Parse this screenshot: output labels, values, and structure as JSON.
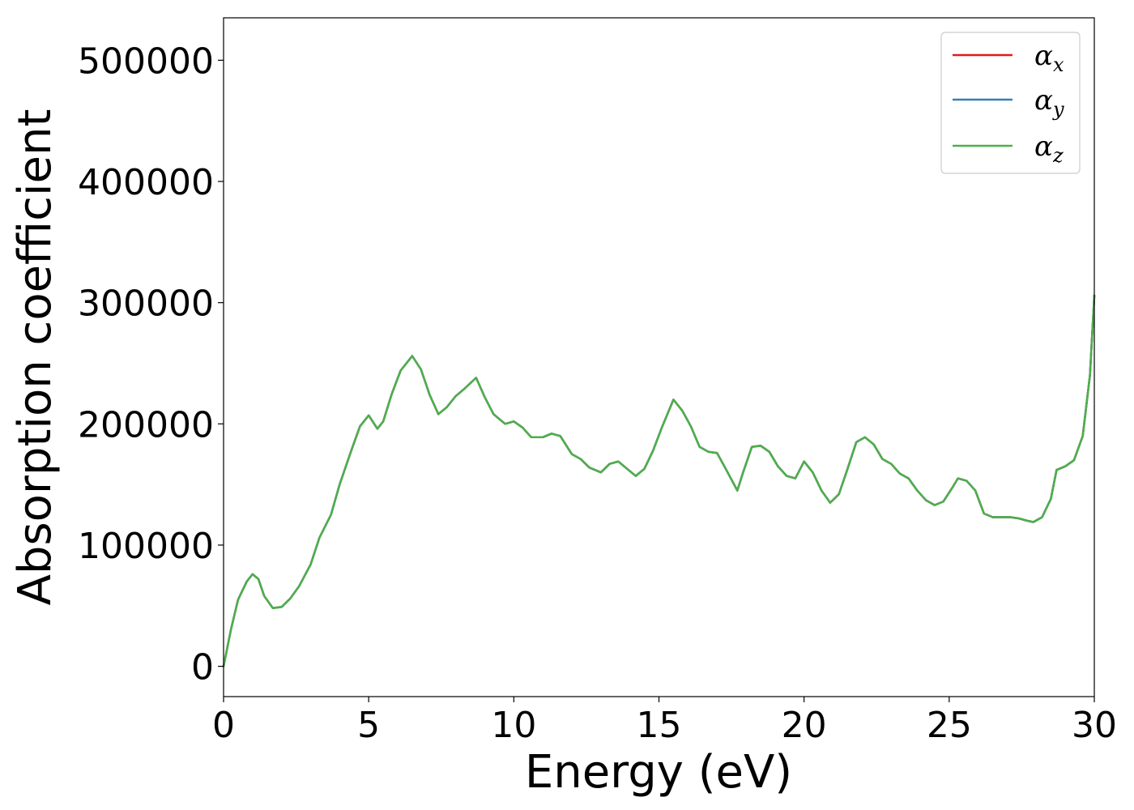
{
  "chart_data": {
    "type": "line",
    "xlabel": "Energy (eV)",
    "ylabel": "Absorption coefficient",
    "xlim": [
      0,
      30
    ],
    "ylim": [
      -25000,
      535000
    ],
    "xticks": [
      0,
      5,
      10,
      15,
      20,
      25,
      30
    ],
    "xtick_labels": [
      "0",
      "5",
      "10",
      "15",
      "20",
      "25",
      "30"
    ],
    "yticks": [
      0,
      100000,
      200000,
      300000,
      400000,
      500000
    ],
    "ytick_labels": [
      "0",
      "100000",
      "200000",
      "300000",
      "400000",
      "500000"
    ],
    "grid": false,
    "legend_position": "top-right",
    "x": [
      0.0,
      0.25,
      0.5,
      0.8,
      1.0,
      1.2,
      1.4,
      1.7,
      2.0,
      2.3,
      2.6,
      3.0,
      3.3,
      3.7,
      4.0,
      4.4,
      4.7,
      5.0,
      5.3,
      5.5,
      5.8,
      6.1,
      6.5,
      6.8,
      7.1,
      7.4,
      7.7,
      8.0,
      8.3,
      8.7,
      9.0,
      9.3,
      9.7,
      10.0,
      10.3,
      10.6,
      11.0,
      11.3,
      11.6,
      12.0,
      12.3,
      12.6,
      13.0,
      13.3,
      13.6,
      13.9,
      14.2,
      14.5,
      14.8,
      15.1,
      15.5,
      15.8,
      16.1,
      16.4,
      16.7,
      17.0,
      17.3,
      17.7,
      17.9,
      18.2,
      18.5,
      18.8,
      19.1,
      19.4,
      19.7,
      20.0,
      20.3,
      20.6,
      20.9,
      21.2,
      21.5,
      21.8,
      22.1,
      22.4,
      22.7,
      23.0,
      23.3,
      23.6,
      23.9,
      24.2,
      24.5,
      24.8,
      25.1,
      25.3,
      25.6,
      25.9,
      26.2,
      26.5,
      26.8,
      27.1,
      27.4,
      27.7,
      27.9,
      28.2,
      28.5,
      28.7,
      29.0,
      29.3,
      29.6,
      29.85,
      30.0
    ],
    "series": [
      {
        "name": "αx",
        "color": "#e41a1c",
        "y": [
          0,
          30000,
          55000,
          70000,
          76000,
          72000,
          58000,
          48000,
          49000,
          56000,
          66000,
          84000,
          106000,
          125000,
          150000,
          178000,
          198000,
          207000,
          196000,
          202000,
          225000,
          244000,
          256000,
          245000,
          224000,
          208000,
          214000,
          223000,
          229000,
          238000,
          222000,
          208000,
          200000,
          202000,
          197000,
          189000,
          189000,
          192000,
          190000,
          175000,
          171000,
          164000,
          160000,
          167000,
          169000,
          163000,
          157000,
          163000,
          178000,
          197000,
          220000,
          211000,
          198000,
          181000,
          177000,
          176000,
          163000,
          145000,
          160000,
          181000,
          182000,
          177000,
          165000,
          157000,
          155000,
          169000,
          160000,
          145000,
          135000,
          142000,
          163000,
          185000,
          189000,
          183000,
          171000,
          167000,
          159000,
          155000,
          145000,
          137000,
          133000,
          136000,
          147000,
          155000,
          153000,
          145000,
          126000,
          123000,
          123000,
          123000,
          122000,
          120000,
          119000,
          123000,
          138000,
          162000,
          165000,
          170000,
          190000,
          240000,
          306000
        ]
      },
      {
        "name": "αy",
        "color": "#377eb8",
        "y": [
          0,
          30000,
          55000,
          70000,
          76000,
          72000,
          58000,
          48000,
          49000,
          56000,
          66000,
          84000,
          106000,
          125000,
          150000,
          178000,
          198000,
          207000,
          196000,
          202000,
          225000,
          244000,
          256000,
          245000,
          224000,
          208000,
          214000,
          223000,
          229000,
          238000,
          222000,
          208000,
          200000,
          202000,
          197000,
          189000,
          189000,
          192000,
          190000,
          175000,
          171000,
          164000,
          160000,
          167000,
          169000,
          163000,
          157000,
          163000,
          178000,
          197000,
          220000,
          211000,
          198000,
          181000,
          177000,
          176000,
          163000,
          145000,
          160000,
          181000,
          182000,
          177000,
          165000,
          157000,
          155000,
          169000,
          160000,
          145000,
          135000,
          142000,
          163000,
          185000,
          189000,
          183000,
          171000,
          167000,
          159000,
          155000,
          145000,
          137000,
          133000,
          136000,
          147000,
          155000,
          153000,
          145000,
          126000,
          123000,
          123000,
          123000,
          122000,
          120000,
          119000,
          123000,
          138000,
          162000,
          165000,
          170000,
          190000,
          240000,
          306000
        ]
      },
      {
        "name": "αz",
        "color": "#4daf4a",
        "y": [
          0,
          30000,
          55000,
          70000,
          76000,
          72000,
          58000,
          48000,
          49000,
          56000,
          66000,
          84000,
          106000,
          125000,
          150000,
          178000,
          198000,
          207000,
          196000,
          202000,
          225000,
          244000,
          256000,
          245000,
          224000,
          208000,
          214000,
          223000,
          229000,
          238000,
          222000,
          208000,
          200000,
          202000,
          197000,
          189000,
          189000,
          192000,
          190000,
          175000,
          171000,
          164000,
          160000,
          167000,
          169000,
          163000,
          157000,
          163000,
          178000,
          197000,
          220000,
          211000,
          198000,
          181000,
          177000,
          176000,
          163000,
          145000,
          160000,
          181000,
          182000,
          177000,
          165000,
          157000,
          155000,
          169000,
          160000,
          145000,
          135000,
          142000,
          163000,
          185000,
          189000,
          183000,
          171000,
          167000,
          159000,
          155000,
          145000,
          137000,
          133000,
          136000,
          147000,
          155000,
          153000,
          145000,
          126000,
          123000,
          123000,
          123000,
          122000,
          120000,
          119000,
          123000,
          138000,
          162000,
          165000,
          170000,
          190000,
          240000,
          306000
        ]
      }
    ],
    "legend": [
      {
        "symbol": "α",
        "sub": "x",
        "color": "#e41a1c"
      },
      {
        "symbol": "α",
        "sub": "y",
        "color": "#377eb8"
      },
      {
        "symbol": "α",
        "sub": "z",
        "color": "#4daf4a"
      }
    ]
  }
}
